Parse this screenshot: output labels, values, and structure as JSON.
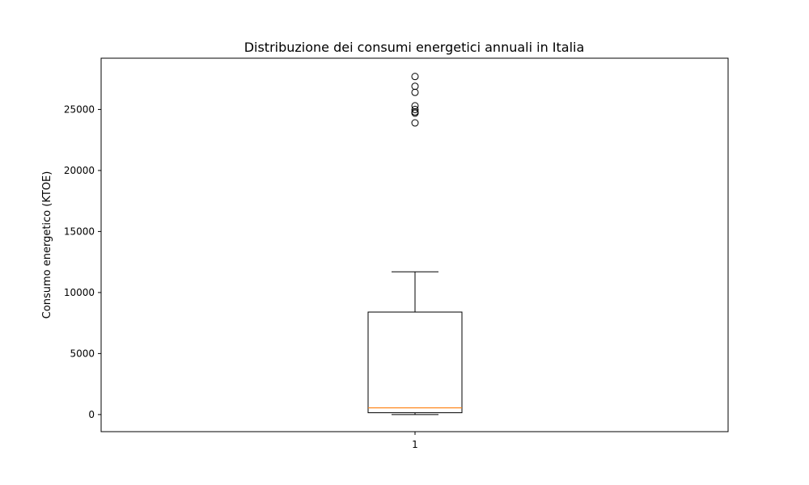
{
  "chart_data": {
    "type": "box",
    "title": "Distribuzione dei consumi energetici annuali in Italia",
    "xlabel": "",
    "ylabel": "Consumo energetico (KTOE)",
    "categories": [
      "1"
    ],
    "ylim": [
      -1400,
      29200
    ],
    "yticks": [
      0,
      5000,
      10000,
      15000,
      20000,
      25000
    ],
    "grid": false,
    "box": {
      "whisker_low": 0,
      "q1": 150,
      "median": 550,
      "q3": 8400,
      "whisker_high": 11700
    },
    "outliers": [
      23900,
      24700,
      24800,
      25000,
      25300,
      26400,
      26900,
      27700
    ],
    "colors": {
      "median": "#ff7f0e",
      "box": "#000000"
    }
  }
}
